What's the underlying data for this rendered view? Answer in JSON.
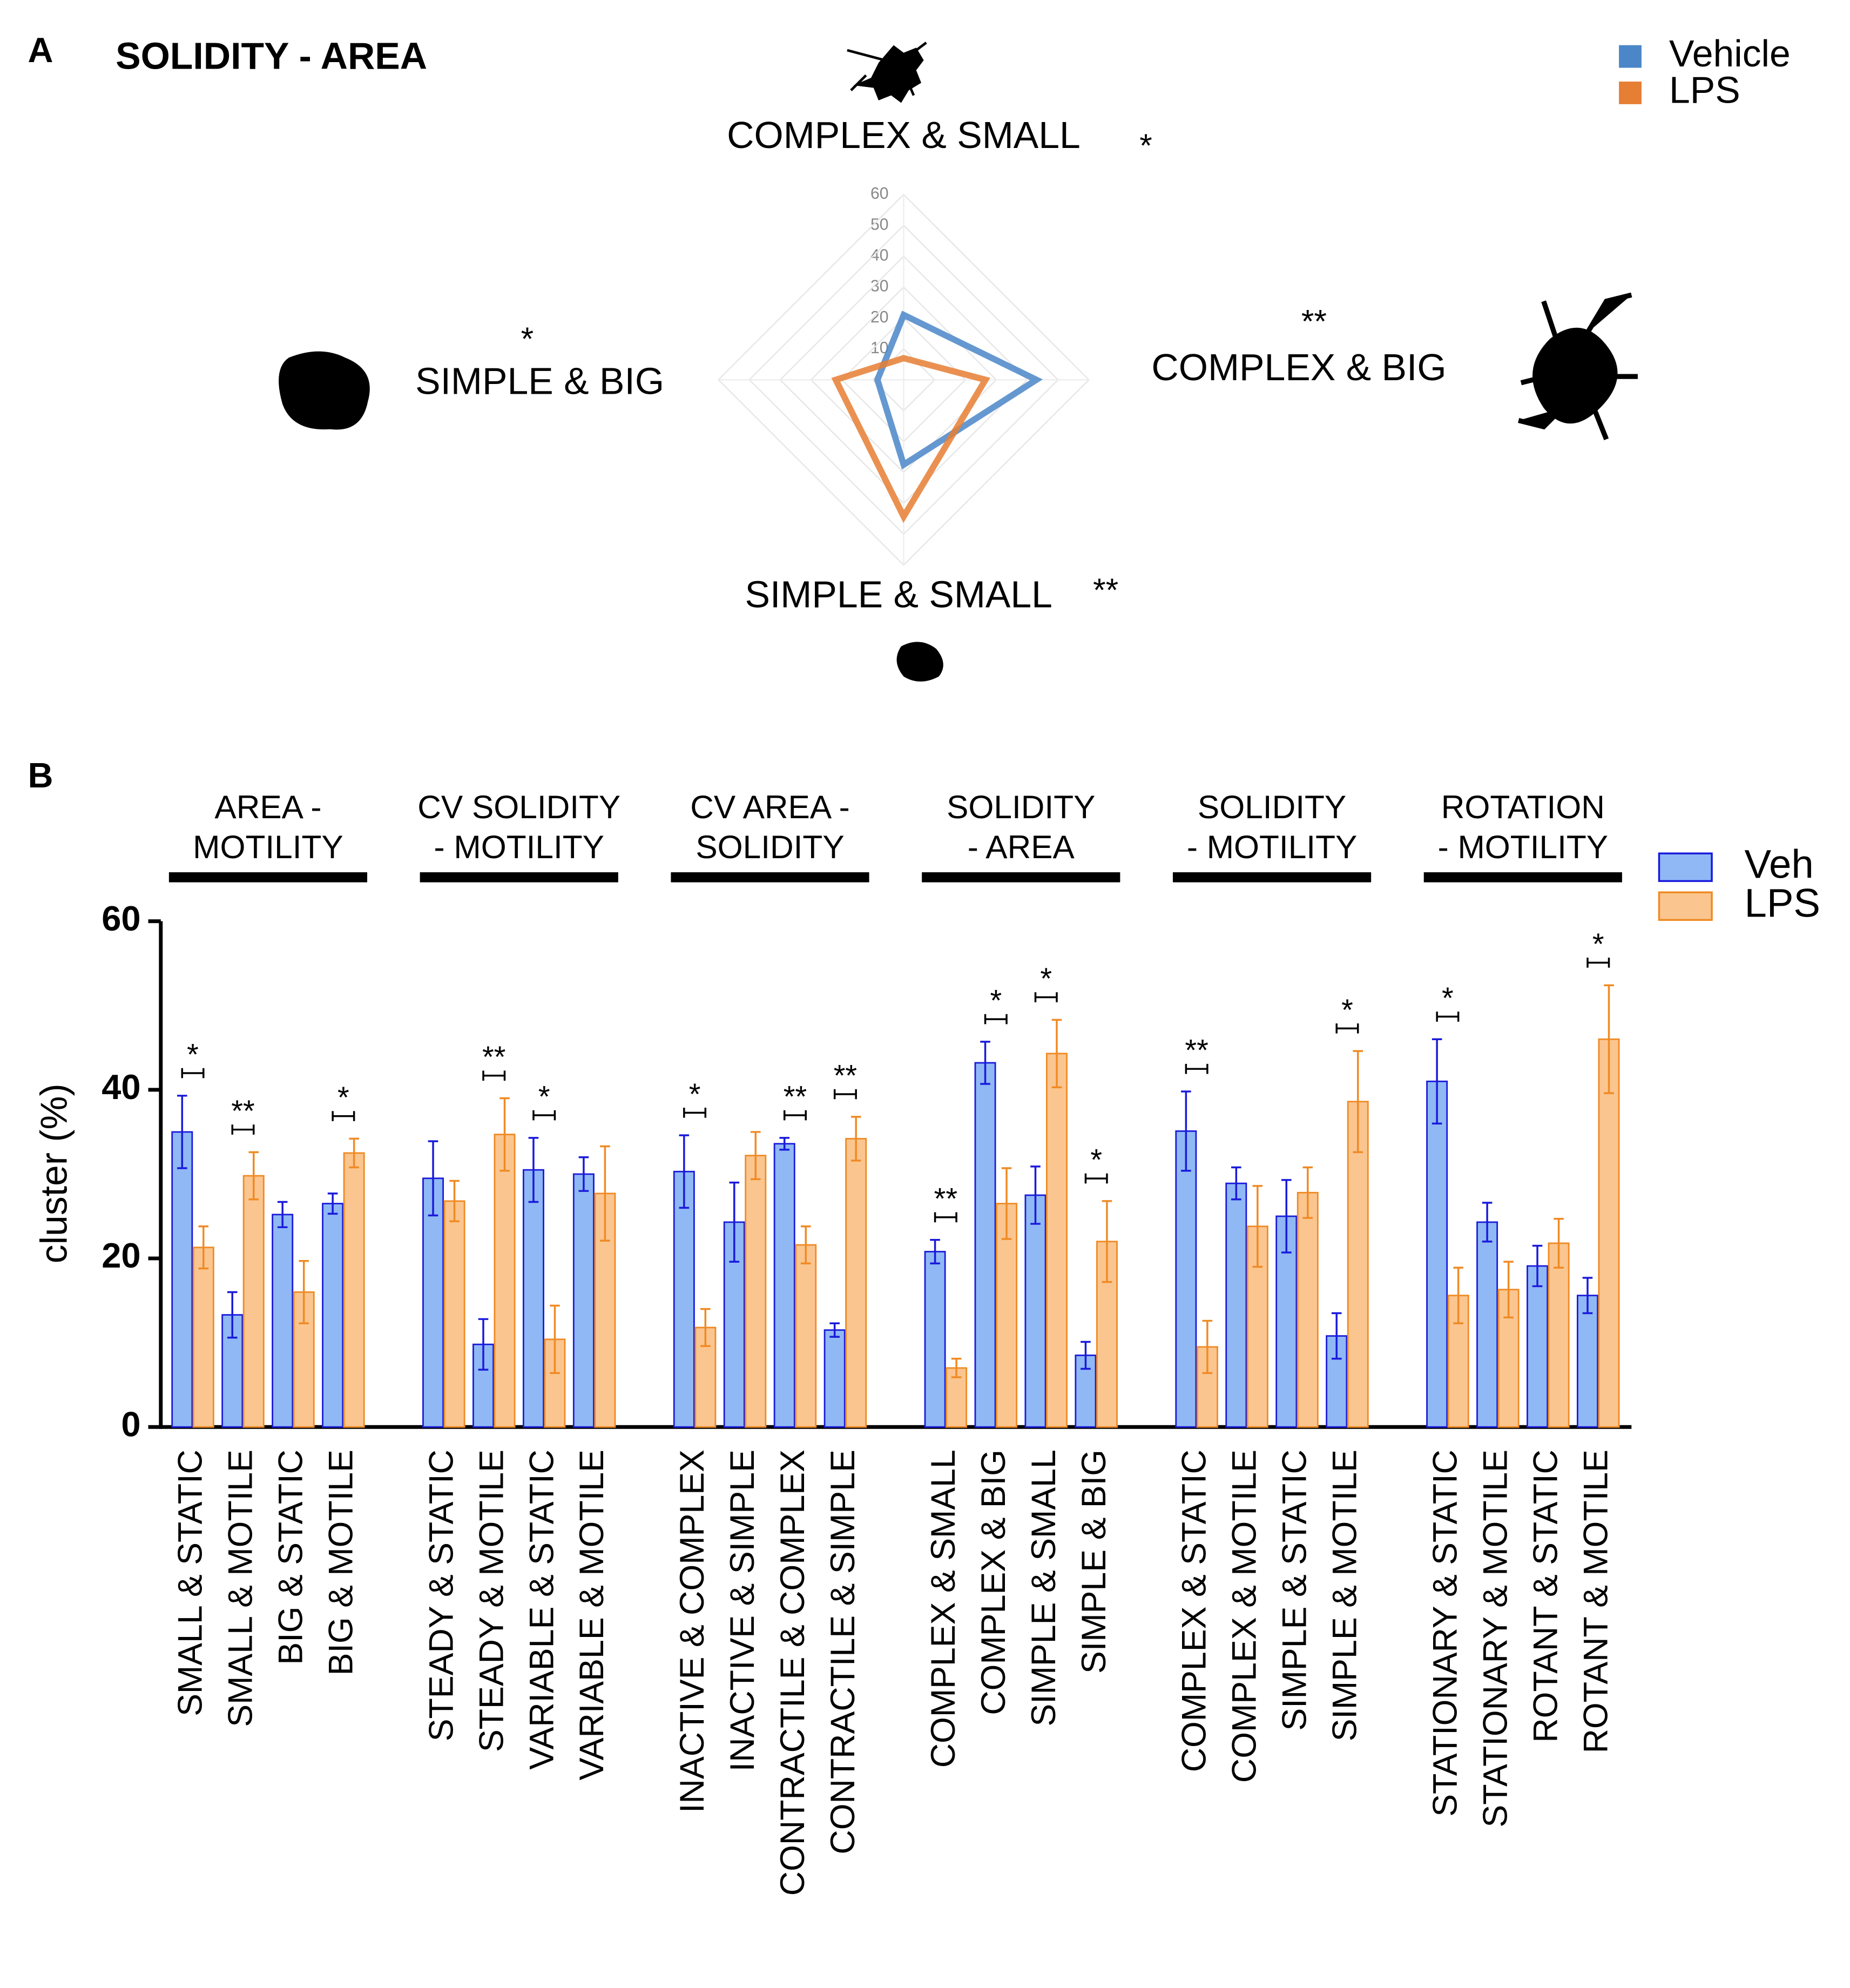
{
  "chart_data": [
    {
      "type": "radar",
      "panel": "A",
      "title": "SOLIDITY - AREA",
      "categories": [
        "COMPLEX & SMALL",
        "COMPLEX & BIG",
        "SIMPLE & SMALL",
        "SIMPLE & BIG"
      ],
      "annotations": [
        "*",
        "**",
        "**",
        "*"
      ],
      "series": [
        {
          "name": "Vehicle",
          "color": "#4a86c8",
          "values": [
            21,
            43,
            27.5,
            8.5
          ]
        },
        {
          "name": "LPS",
          "color": "#e67e33",
          "values": [
            7,
            26.5,
            44.3,
            22
          ]
        }
      ],
      "rlim": [
        0,
        60
      ],
      "rticks": [
        10,
        20,
        30,
        40,
        50,
        60
      ],
      "grid": true,
      "legend": "top-right"
    },
    {
      "type": "bar",
      "panel": "B",
      "ylabel": "cluster (%)",
      "group_titles": [
        [
          "AREA -",
          "MOTILITY"
        ],
        [
          "CV SOLIDITY",
          "- MOTILITY"
        ],
        [
          "CV AREA -",
          "SOLIDITY"
        ],
        [
          "SOLIDITY",
          "- AREA"
        ],
        [
          "SOLIDITY",
          "- MOTILITY"
        ],
        [
          "ROTATION",
          "- MOTILITY"
        ]
      ],
      "categories": [
        "SMALL & STATIC",
        "SMALL & MOTILE",
        "BIG & STATIC",
        "BIG & MOTILE",
        "STEADY & STATIC",
        "STEADY & MOTILE",
        "VARIABLE & STATIC",
        "VARIABLE & MOTILE",
        "INACTIVE & COMPLEX",
        "INACTIVE & SIMPLE",
        "CONTRACTILE & COMPLEX",
        "CONTRACTILE & SIMPLE",
        "COMPLEX & SMALL",
        "COMPLEX & BIG",
        "SIMPLE & SMALL",
        "SIMPLE & BIG",
        "COMPLEX & STATIC",
        "COMPLEX & MOTILE",
        "SIMPLE & STATIC",
        "SIMPLE & MOTILE",
        "STATIONARY & STATIC",
        "STATIONARY & MOTILE",
        "ROTANT & STATIC",
        "ROTANT & MOTILE"
      ],
      "series": [
        {
          "name": "Veh",
          "color": "#8fb8f5",
          "edge": "#1a1adb",
          "values": [
            35,
            13.3,
            25.2,
            26.5,
            29.5,
            9.8,
            30.5,
            30,
            30.3,
            24.3,
            33.6,
            11.5,
            20.8,
            43.2,
            27.5,
            8.5,
            35.1,
            28.9,
            25,
            10.8,
            41,
            24.3,
            19.1,
            15.6
          ],
          "errors": [
            4.3,
            2.7,
            1.5,
            1.2,
            4.4,
            3,
            3.8,
            2,
            4.3,
            4.7,
            0.7,
            0.8,
            1.4,
            2.5,
            3.4,
            1.6,
            4.7,
            1.9,
            4.3,
            2.7,
            5,
            2.3,
            2.4,
            2.1
          ]
        },
        {
          "name": "LPS",
          "color": "#fbc58f",
          "edge": "#f08a24",
          "values": [
            21.3,
            29.8,
            16,
            32.5,
            26.8,
            34.7,
            10.4,
            27.7,
            11.8,
            32.2,
            21.6,
            34.2,
            7,
            26.5,
            44.3,
            22,
            9.5,
            23.8,
            27.8,
            38.6,
            15.6,
            16.3,
            21.8,
            46
          ],
          "errors": [
            2.5,
            2.8,
            3.7,
            1.7,
            2.4,
            4.3,
            4,
            5.6,
            2.2,
            2.8,
            2.2,
            2.6,
            1.1,
            4.2,
            4,
            4.8,
            3.1,
            4.8,
            3,
            6,
            3.3,
            3.3,
            2.9,
            6.4
          ]
        }
      ],
      "annotations": [
        "*",
        "**",
        null,
        "*",
        null,
        "**",
        "*",
        null,
        "*",
        null,
        "**",
        "**",
        "**",
        "*",
        "*",
        "*",
        "**",
        null,
        null,
        "*",
        "*",
        null,
        null,
        "*"
      ],
      "ylim": [
        0,
        60
      ],
      "yticks": [
        0,
        20,
        40,
        60
      ],
      "legend": "top-right"
    }
  ]
}
